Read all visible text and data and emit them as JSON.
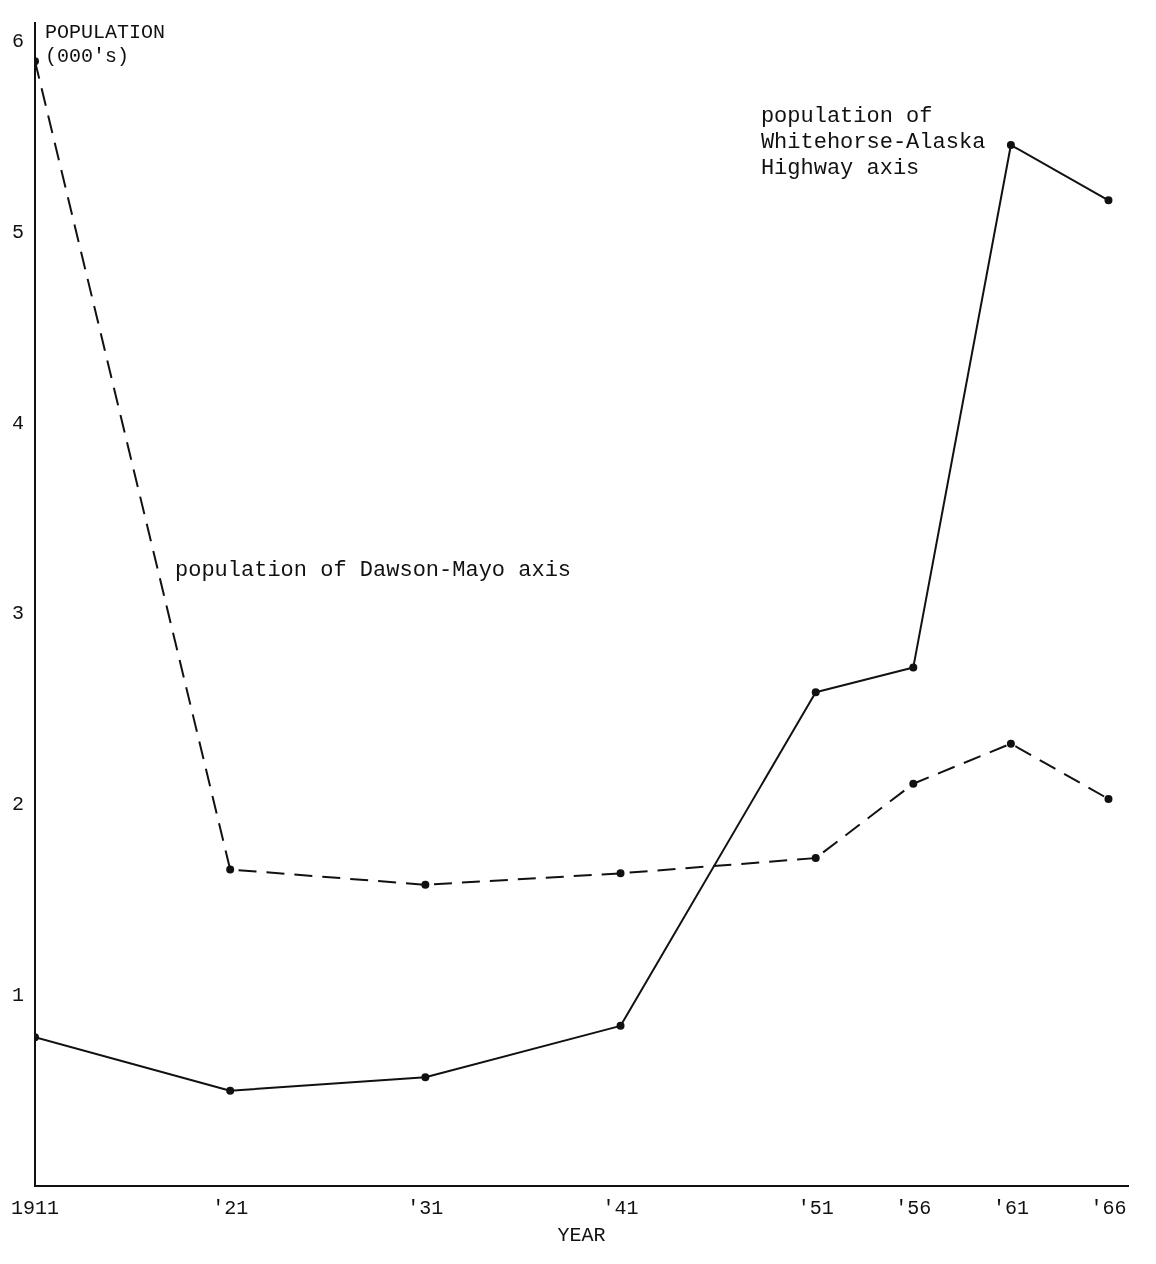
{
  "chart_data": {
    "type": "line",
    "ylabel": "POPULATION\n(000's)",
    "xlabel": "YEAR",
    "x": [
      1911,
      1921,
      1931,
      1941,
      1951,
      1956,
      1961,
      1966
    ],
    "xlim": [
      1911,
      1967
    ],
    "xticks": [
      {
        "value": 1911,
        "label": "1911"
      },
      {
        "value": 1921,
        "label": "'21"
      },
      {
        "value": 1931,
        "label": "'31"
      },
      {
        "value": 1941,
        "label": "'41"
      },
      {
        "value": 1951,
        "label": "'51"
      },
      {
        "value": 1956,
        "label": "'56"
      },
      {
        "value": 1961,
        "label": "'61"
      },
      {
        "value": 1966,
        "label": "'66"
      }
    ],
    "ylim": [
      0,
      6.1
    ],
    "yticks": [
      1,
      2,
      3,
      4,
      5,
      6
    ],
    "grid": false,
    "legend": false,
    "marker": "circle",
    "series": [
      {
        "name": "population of\nWhitehorse-Alaska\nHighway axis",
        "color": "#111111",
        "line_style": "solid",
        "values": [
          0.78,
          0.5,
          0.57,
          0.84,
          2.59,
          2.72,
          5.46,
          5.17
        ]
      },
      {
        "name": "population of Dawson-Mayo axis",
        "color": "#111111",
        "line_style": "dashed",
        "values": [
          5.9,
          1.66,
          1.58,
          1.64,
          1.72,
          2.11,
          2.32,
          2.03
        ]
      }
    ]
  }
}
